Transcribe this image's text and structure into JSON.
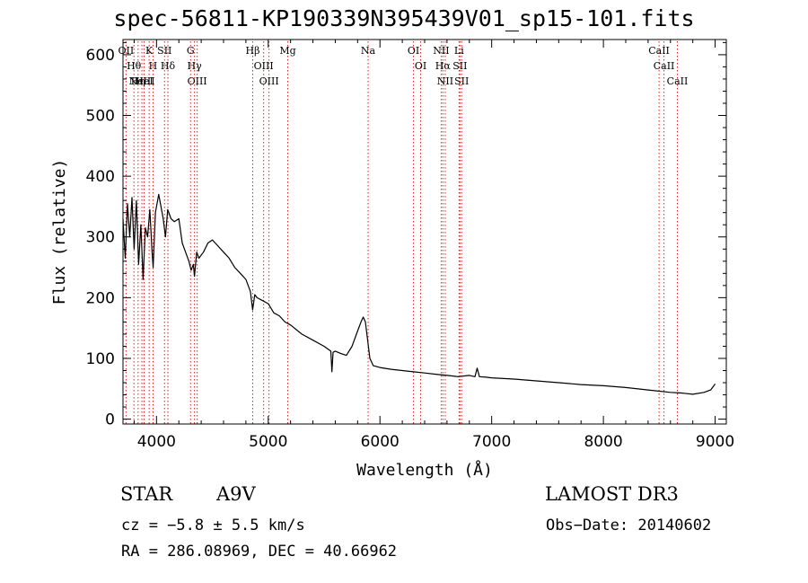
{
  "chart_data": {
    "type": "line",
    "title": "spec-56811-KP190339N395439V01_sp15-101.fits",
    "xlabel": "Wavelength (Å)",
    "ylabel": "Flux (relative)",
    "xlim": [
      3700,
      9100
    ],
    "ylim": [
      -8,
      625
    ],
    "xticks": [
      4000,
      5000,
      6000,
      7000,
      8000,
      9000
    ],
    "yticks": [
      0,
      100,
      200,
      300,
      400,
      500,
      600
    ],
    "series": [
      {
        "name": "flux",
        "x": [
          3700,
          3720,
          3740,
          3760,
          3780,
          3800,
          3820,
          3840,
          3860,
          3880,
          3900,
          3920,
          3940,
          3960,
          3970,
          3990,
          4020,
          4060,
          4080,
          4100,
          4130,
          4160,
          4200,
          4230,
          4260,
          4290,
          4310,
          4330,
          4340,
          4360,
          4380,
          4420,
          4460,
          4500,
          4550,
          4600,
          4650,
          4700,
          4750,
          4800,
          4840,
          4860,
          4880,
          4900,
          4950,
          5000,
          5050,
          5100,
          5150,
          5200,
          5300,
          5400,
          5500,
          5560,
          5570,
          5580,
          5600,
          5650,
          5700,
          5750,
          5800,
          5830,
          5850,
          5870,
          5890,
          5910,
          5940,
          6000,
          6100,
          6200,
          6300,
          6400,
          6500,
          6600,
          6700,
          6800,
          6850,
          6870,
          6890,
          6950,
          7000,
          7200,
          7400,
          7600,
          7800,
          8000,
          8200,
          8400,
          8600,
          8700,
          8800,
          8900,
          8960,
          9000
        ],
        "y": [
          330,
          265,
          355,
          300,
          365,
          280,
          360,
          255,
          320,
          230,
          315,
          300,
          345,
          275,
          250,
          340,
          370,
          330,
          300,
          345,
          330,
          325,
          330,
          290,
          275,
          260,
          245,
          255,
          235,
          275,
          265,
          275,
          290,
          295,
          285,
          275,
          265,
          250,
          240,
          230,
          210,
          180,
          205,
          200,
          195,
          190,
          175,
          170,
          160,
          155,
          140,
          130,
          120,
          112,
          78,
          110,
          112,
          108,
          105,
          120,
          145,
          160,
          168,
          160,
          130,
          100,
          88,
          85,
          82,
          80,
          78,
          76,
          74,
          72,
          70,
          72,
          70,
          84,
          70,
          69,
          68,
          66,
          63,
          60,
          57,
          55,
          52,
          48,
          44,
          43,
          41,
          44,
          48,
          58
        ]
      }
    ],
    "lines": [
      {
        "wave": 3727,
        "label": "OII"
      },
      {
        "wave": 3798,
        "label": "Hθ"
      },
      {
        "wave": 3835,
        "label": "Hη"
      },
      {
        "wave": 3869,
        "label": "NeIII"
      },
      {
        "wave": 3889,
        "label": "HeI"
      },
      {
        "wave": 3934,
        "label": "K"
      },
      {
        "wave": 3969,
        "label": "H"
      },
      {
        "wave": 4072,
        "label": "SII"
      },
      {
        "wave": 4102,
        "label": "Hδ"
      },
      {
        "wave": 4305,
        "label": "G"
      },
      {
        "wave": 4340,
        "label": "Hγ"
      },
      {
        "wave": 4364,
        "label": "OIII"
      },
      {
        "wave": 4861,
        "label": "Hβ"
      },
      {
        "wave": 4959,
        "label": "OIII"
      },
      {
        "wave": 5007,
        "label": "OIII"
      },
      {
        "wave": 5175,
        "label": "Mg"
      },
      {
        "wave": 5894,
        "label": "Na"
      },
      {
        "wave": 6300,
        "label": "OI"
      },
      {
        "wave": 6364,
        "label": "OI"
      },
      {
        "wave": 6548,
        "label": "NII"
      },
      {
        "wave": 6563,
        "label": "Hα"
      },
      {
        "wave": 6584,
        "label": "NII"
      },
      {
        "wave": 6708,
        "label": "Li"
      },
      {
        "wave": 6716,
        "label": "SII"
      },
      {
        "wave": 6731,
        "label": "SII"
      },
      {
        "wave": 8498,
        "label": "CaII"
      },
      {
        "wave": 8542,
        "label": "CaII"
      },
      {
        "wave": 8662,
        "label": "CaII"
      }
    ]
  },
  "info": {
    "class_label": "STAR",
    "subclass": "A9V",
    "survey": "LAMOST DR3",
    "cz": "cz = −5.8 ± 5.5 km/s",
    "obs_date": "Obs−Date: 20140602",
    "radec": "RA = 286.08969, DEC =  40.66962"
  },
  "colors": {
    "spectrum": "#000000",
    "line_markers": "#cc2222",
    "axis": "#000000",
    "background": "#ffffff"
  }
}
